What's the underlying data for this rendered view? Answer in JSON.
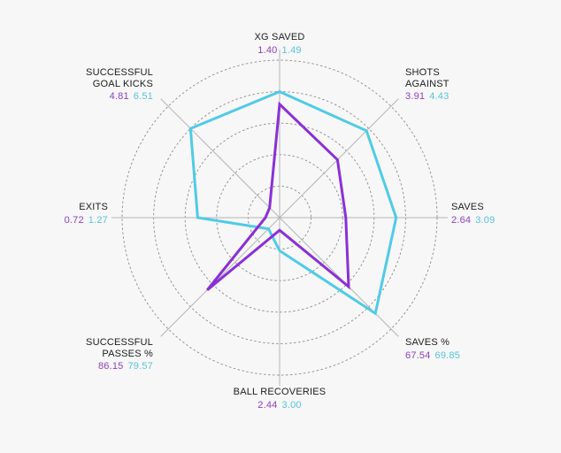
{
  "chart_data": {
    "type": "radar",
    "colors": {
      "series_a": "#8b2fd6",
      "series_b": "#4fcbe6"
    },
    "axes": [
      {
        "lines": [
          "XG SAVED"
        ],
        "a": "1.40",
        "b": "1.49",
        "ra": 0.72,
        "rb": 0.8
      },
      {
        "lines": [
          "SHOTS",
          "AGAINST"
        ],
        "a": "3.91",
        "b": "4.43",
        "ra": 0.52,
        "rb": 0.78
      },
      {
        "lines": [
          "SAVES"
        ],
        "a": "2.64",
        "b": "3.09",
        "ra": 0.42,
        "rb": 0.74
      },
      {
        "lines": [
          "SAVES %"
        ],
        "a": "67.54",
        "b": "69.85",
        "ra": 0.62,
        "rb": 0.86
      },
      {
        "lines": [
          "BALL RECOVERIES"
        ],
        "a": "2.44",
        "b": "3.00",
        "ra": 0.08,
        "rb": 0.21
      },
      {
        "lines": [
          "SUCCESSFUL",
          "PASSES %"
        ],
        "a": "86.15",
        "b": "79.57",
        "ra": 0.65,
        "rb": 0.1
      },
      {
        "lines": [
          "EXITS"
        ],
        "a": "0.72",
        "b": "1.27",
        "ra": 0.09,
        "rb": 0.52
      },
      {
        "lines": [
          "SUCCESSFUL",
          "GOAL KICKS"
        ],
        "a": "4.81",
        "b": "6.51",
        "ra": 0.09,
        "rb": 0.8
      }
    ]
  }
}
